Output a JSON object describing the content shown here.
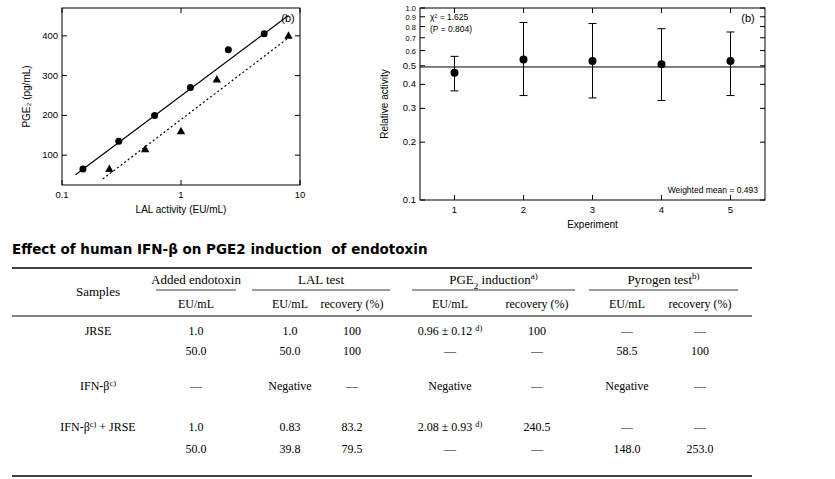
{
  "chart_data": [
    {
      "type": "scatter",
      "log": "x",
      "x_label": "LAL activity (EU/mL)",
      "y_label": "PGE₂ (pg/mL)",
      "annotations": [
        "(b)"
      ],
      "xlim": [
        0.1,
        10
      ],
      "xticks": [
        0.1,
        1,
        10
      ],
      "ylim": [
        25,
        470
      ],
      "yticks": [
        100,
        200,
        300,
        400
      ],
      "series": [
        {
          "type": "scatter",
          "marker": "circle",
          "color": "#000000",
          "x": [
            0.15,
            0.3,
            0.6,
            1.2,
            2.5,
            5
          ],
          "values": [
            65,
            135,
            200,
            270,
            365,
            405
          ]
        },
        {
          "type": "scatter",
          "marker": "triangle",
          "color": "#000000",
          "x": [
            0.25,
            0.5,
            1,
            2,
            8
          ],
          "values": [
            65,
            115,
            160,
            290,
            400
          ]
        },
        {
          "type": "line",
          "line_style": "solid",
          "color": "#000000",
          "x": [
            0.13,
            8
          ],
          "values": [
            51,
            451
          ]
        },
        {
          "type": "line",
          "line_style": "dotted",
          "color": "#000000",
          "x": [
            0.22,
            8
          ],
          "values": [
            40,
            395
          ]
        }
      ]
    },
    {
      "type": "scatter",
      "log": "y",
      "x_label": "Experiment",
      "y_label": "Relative activity",
      "annotations": [
        "(b)",
        "χ² = 1.625",
        "(P = 0.804)",
        "Weighted mean = 0.493"
      ],
      "reference_line": 0.493,
      "xlim": [
        0.5,
        5.5
      ],
      "xticks": [
        1,
        2,
        3,
        4,
        5
      ],
      "ylim": [
        0.1,
        1.0
      ],
      "yticks": [
        0.1,
        0.2,
        0.3,
        0.4,
        0.5,
        0.6,
        0.7,
        0.8,
        0.9,
        {
          "value": 1.0,
          "label": "1.0"
        }
      ],
      "x": [
        1,
        2,
        3,
        4,
        5
      ],
      "series": [
        {
          "marker": "circle",
          "color": "#000000",
          "values": [
            0.46,
            0.54,
            0.53,
            0.51,
            0.53
          ],
          "lower": [
            0.37,
            0.35,
            0.34,
            0.33,
            0.35
          ],
          "upper": [
            0.56,
            0.84,
            0.83,
            0.78,
            0.75
          ]
        }
      ]
    }
  ],
  "title": "Effect of human IFN-β on PGE2 induction  of endotoxin",
  "table": {
    "header": [
      [
        "Samples",
        "Added endotoxin",
        "LAL test",
        [
          "PGE",
          {
            "sub": "2"
          },
          " induction",
          {
            "sup": "a)"
          }
        ],
        [
          "Pyrogen test",
          {
            "sup": "b)"
          }
        ]
      ],
      [
        "EU/mL",
        "EU/mL",
        "recovery (%)",
        "EU/mL",
        "recovery (%)",
        "EU/mL",
        "recovery (%)"
      ]
    ],
    "rows": [
      [
        "JRSE",
        "1.0",
        "1.0",
        "100",
        [
          "0.96 ± 0.12 ",
          {
            "sup": "d)"
          }
        ],
        "100",
        "—",
        "—"
      ],
      [
        null,
        "50.0",
        "50.0",
        "100",
        "—",
        "—",
        "58.5",
        "100"
      ],
      [
        [
          "IFN-β",
          {
            "sup": "c)"
          }
        ],
        "—",
        "Negative",
        "—",
        "Negative",
        "—",
        "Negative",
        "—"
      ],
      [
        [
          "IFN-β",
          {
            "sup": "c)"
          },
          " + JRSE"
        ],
        "1.0",
        "0.83",
        "83.2",
        [
          "2.08 ± 0.93 ",
          {
            "sup": "d)"
          }
        ],
        "240.5",
        "—",
        "—"
      ],
      [
        null,
        "50.0",
        "39.8",
        "79.5",
        "—",
        "—",
        "148.0",
        "253.0"
      ]
    ]
  }
}
